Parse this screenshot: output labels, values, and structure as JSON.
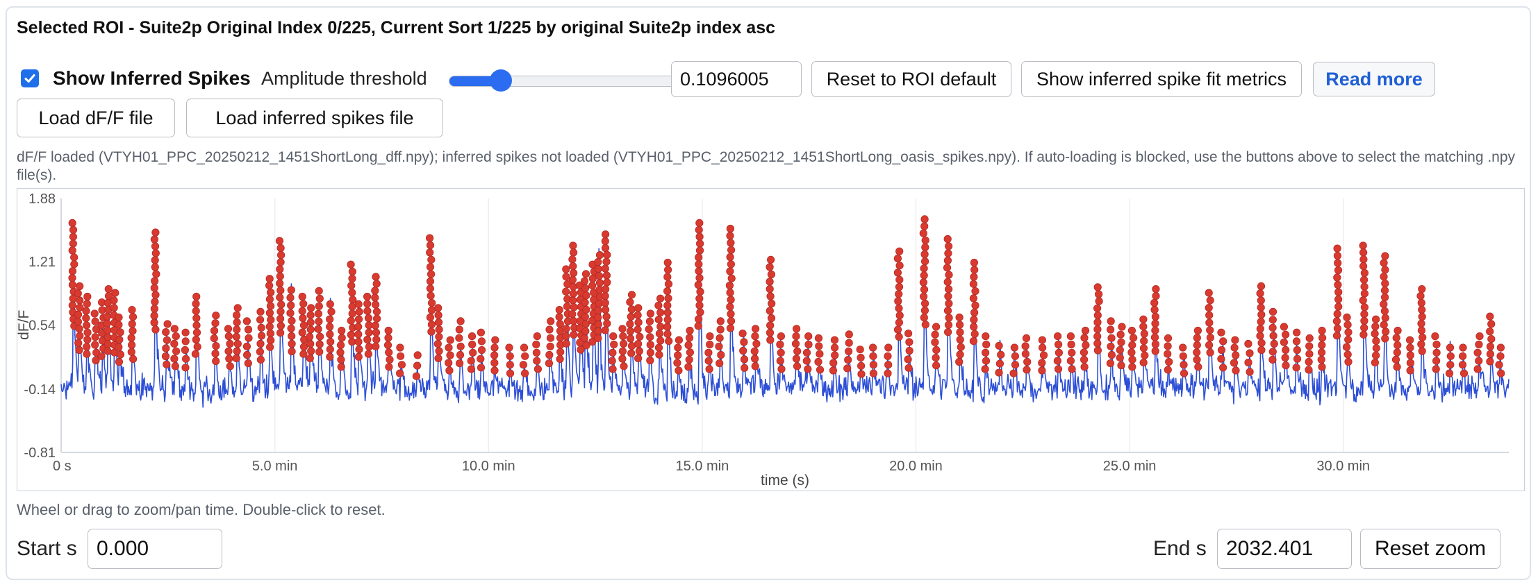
{
  "header": {
    "title": "Selected ROI - Suite2p Original Index 0/225, Current Sort 1/225 by original Suite2p index asc"
  },
  "controls": {
    "show_spikes_checked": true,
    "show_spikes_label": "Show Inferred Spikes",
    "amplitude_label": "Amplitude threshold",
    "amplitude_slider_level": 0.23,
    "amplitude_value": "0.1096005",
    "reset_roi_label": "Reset to ROI default",
    "fit_metrics_label": "Show inferred spike fit metrics",
    "read_more_label": "Read more",
    "load_dff_label": "Load dF/F file",
    "load_spikes_label": "Load inferred spikes file"
  },
  "status": {
    "message": "dF/F loaded (VTYH01_PPC_20250212_1451ShortLong_dff.npy); inferred spikes not loaded (VTYH01_PPC_20250212_1451ShortLong_oasis_spikes.npy). If auto-loading is blocked, use the buttons above to select the matching .npy file(s)."
  },
  "chart_data": {
    "type": "line",
    "xlabel": "time (s)",
    "ylabel": "dF/F",
    "xlim": [
      0,
      2032.401
    ],
    "ylim": [
      -0.81,
      1.88
    ],
    "x_tick_labels": [
      "0 s",
      "5.0 min",
      "10.0 min",
      "15.0 min",
      "20.0 min",
      "25.0 min",
      "30.0 min"
    ],
    "x_ticks": [
      0,
      300,
      600,
      900,
      1200,
      1500,
      1800
    ],
    "y_ticks": [
      1.88,
      1.21,
      0.54,
      -0.14,
      -0.81
    ],
    "y_tick_labels": [
      "1.88",
      "1.21",
      "0.54",
      "-0.14",
      "-0.81"
    ],
    "grid": true,
    "series": [
      {
        "name": "",
        "color": "#2d4fd6"
      },
      {
        "name": "",
        "color": "#d93a30"
      }
    ],
    "events": [
      {
        "t": 17,
        "peak": 1.62
      },
      {
        "t": 25,
        "peak": 0.95
      },
      {
        "t": 36,
        "peak": 0.84
      },
      {
        "t": 48,
        "peak": 0.66
      },
      {
        "t": 58,
        "peak": 0.78
      },
      {
        "t": 66,
        "peak": 0.92
      },
      {
        "t": 75,
        "peak": 0.88
      },
      {
        "t": 82,
        "peak": 0.62
      },
      {
        "t": 100,
        "peak": 0.7
      },
      {
        "t": 132,
        "peak": 1.52
      },
      {
        "t": 148,
        "peak": 0.55
      },
      {
        "t": 160,
        "peak": 0.5
      },
      {
        "t": 175,
        "peak": 0.46
      },
      {
        "t": 190,
        "peak": 0.84
      },
      {
        "t": 216,
        "peak": 0.64
      },
      {
        "t": 236,
        "peak": 0.5
      },
      {
        "t": 247,
        "peak": 0.72
      },
      {
        "t": 262,
        "peak": 0.58
      },
      {
        "t": 280,
        "peak": 0.68
      },
      {
        "t": 293,
        "peak": 1.03
      },
      {
        "t": 308,
        "peak": 1.43
      },
      {
        "t": 323,
        "peak": 0.91
      },
      {
        "t": 340,
        "peak": 0.84
      },
      {
        "t": 350,
        "peak": 0.72
      },
      {
        "t": 362,
        "peak": 0.9
      },
      {
        "t": 378,
        "peak": 0.76
      },
      {
        "t": 393,
        "peak": 0.48
      },
      {
        "t": 408,
        "peak": 1.18
      },
      {
        "t": 418,
        "peak": 0.76
      },
      {
        "t": 431,
        "peak": 0.84
      },
      {
        "t": 442,
        "peak": 1.05
      },
      {
        "t": 460,
        "peak": 0.48
      },
      {
        "t": 477,
        "peak": 0.3
      },
      {
        "t": 500,
        "peak": 0.22
      },
      {
        "t": 519,
        "peak": 1.46
      },
      {
        "t": 530,
        "peak": 0.72
      },
      {
        "t": 545,
        "peak": 0.38
      },
      {
        "t": 560,
        "peak": 0.58
      },
      {
        "t": 577,
        "peak": 0.42
      },
      {
        "t": 590,
        "peak": 0.46
      },
      {
        "t": 608,
        "peak": 0.38
      },
      {
        "t": 630,
        "peak": 0.3
      },
      {
        "t": 650,
        "peak": 0.3
      },
      {
        "t": 668,
        "peak": 0.42
      },
      {
        "t": 686,
        "peak": 0.58
      },
      {
        "t": 700,
        "peak": 0.7
      },
      {
        "t": 710,
        "peak": 1.13
      },
      {
        "t": 719,
        "peak": 1.38
      },
      {
        "t": 729,
        "peak": 0.96
      },
      {
        "t": 736,
        "peak": 1.08
      },
      {
        "t": 747,
        "peak": 1.18
      },
      {
        "t": 755,
        "peak": 1.28
      },
      {
        "t": 765,
        "peak": 1.5
      },
      {
        "t": 775,
        "peak": 0.42
      },
      {
        "t": 789,
        "peak": 0.5
      },
      {
        "t": 800,
        "peak": 0.86
      },
      {
        "t": 811,
        "peak": 0.72
      },
      {
        "t": 826,
        "peak": 0.66
      },
      {
        "t": 840,
        "peak": 0.82
      },
      {
        "t": 852,
        "peak": 1.2
      },
      {
        "t": 866,
        "peak": 0.38
      },
      {
        "t": 882,
        "peak": 0.48
      },
      {
        "t": 896,
        "peak": 1.62
      },
      {
        "t": 910,
        "peak": 0.42
      },
      {
        "t": 925,
        "peak": 0.58
      },
      {
        "t": 940,
        "peak": 1.56
      },
      {
        "t": 958,
        "peak": 0.45
      },
      {
        "t": 975,
        "peak": 0.5
      },
      {
        "t": 996,
        "peak": 1.23
      },
      {
        "t": 1010,
        "peak": 0.42
      },
      {
        "t": 1032,
        "peak": 0.5
      },
      {
        "t": 1048,
        "peak": 0.42
      },
      {
        "t": 1064,
        "peak": 0.4
      },
      {
        "t": 1085,
        "peak": 0.38
      },
      {
        "t": 1105,
        "peak": 0.44
      },
      {
        "t": 1122,
        "peak": 0.28
      },
      {
        "t": 1140,
        "peak": 0.3
      },
      {
        "t": 1160,
        "peak": 0.3
      },
      {
        "t": 1176,
        "peak": 1.32
      },
      {
        "t": 1190,
        "peak": 0.45
      },
      {
        "t": 1212,
        "peak": 1.66
      },
      {
        "t": 1228,
        "peak": 0.52
      },
      {
        "t": 1245,
        "peak": 1.45
      },
      {
        "t": 1262,
        "peak": 0.62
      },
      {
        "t": 1282,
        "peak": 1.2
      },
      {
        "t": 1298,
        "peak": 0.42
      },
      {
        "t": 1318,
        "peak": 0.32
      },
      {
        "t": 1338,
        "peak": 0.3
      },
      {
        "t": 1355,
        "peak": 0.4
      },
      {
        "t": 1378,
        "peak": 0.38
      },
      {
        "t": 1400,
        "peak": 0.42
      },
      {
        "t": 1418,
        "peak": 0.42
      },
      {
        "t": 1437,
        "peak": 0.48
      },
      {
        "t": 1456,
        "peak": 0.94
      },
      {
        "t": 1474,
        "peak": 0.58
      },
      {
        "t": 1488,
        "peak": 0.52
      },
      {
        "t": 1504,
        "peak": 0.48
      },
      {
        "t": 1520,
        "peak": 0.6
      },
      {
        "t": 1536,
        "peak": 0.92
      },
      {
        "t": 1554,
        "peak": 0.4
      },
      {
        "t": 1575,
        "peak": 0.3
      },
      {
        "t": 1595,
        "peak": 0.48
      },
      {
        "t": 1612,
        "peak": 0.88
      },
      {
        "t": 1630,
        "peak": 0.46
      },
      {
        "t": 1648,
        "peak": 0.38
      },
      {
        "t": 1668,
        "peak": 0.34
      },
      {
        "t": 1684,
        "peak": 0.95
      },
      {
        "t": 1702,
        "peak": 0.68
      },
      {
        "t": 1718,
        "peak": 0.52
      },
      {
        "t": 1734,
        "peak": 0.46
      },
      {
        "t": 1752,
        "peak": 0.4
      },
      {
        "t": 1770,
        "peak": 0.48
      },
      {
        "t": 1792,
        "peak": 1.35
      },
      {
        "t": 1806,
        "peak": 0.62
      },
      {
        "t": 1829,
        "peak": 1.38
      },
      {
        "t": 1845,
        "peak": 0.6
      },
      {
        "t": 1858,
        "peak": 1.27
      },
      {
        "t": 1875,
        "peak": 0.48
      },
      {
        "t": 1895,
        "peak": 0.38
      },
      {
        "t": 1910,
        "peak": 0.92
      },
      {
        "t": 1930,
        "peak": 0.42
      },
      {
        "t": 1950,
        "peak": 0.3
      },
      {
        "t": 1968,
        "peak": 0.3
      },
      {
        "t": 1990,
        "peak": 0.42
      },
      {
        "t": 2007,
        "peak": 0.63
      },
      {
        "t": 2020,
        "peak": 0.3
      }
    ]
  },
  "hint": {
    "text": "Wheel or drag to zoom/pan time. Double-click to reset."
  },
  "zoom": {
    "start_label": "Start s",
    "start_value": "0.000",
    "end_label": "End s",
    "end_value": "2032.401",
    "reset_label": "Reset zoom"
  }
}
